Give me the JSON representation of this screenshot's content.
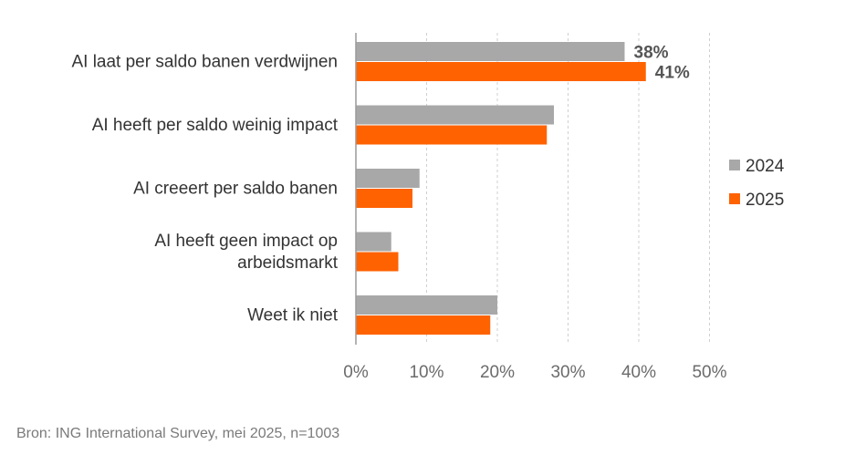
{
  "chart_data": {
    "type": "bar",
    "orientation": "horizontal",
    "categories": [
      [
        "AI laat per saldo banen verdwijnen"
      ],
      [
        "AI heeft per saldo weinig impact"
      ],
      [
        "AI creeert per saldo banen"
      ],
      [
        "AI heeft geen impact op",
        "arbeidsmarkt"
      ],
      [
        "Weet ik niet"
      ]
    ],
    "series": [
      {
        "name": "2024",
        "color": "#a8a8a8",
        "values": [
          38,
          28,
          9,
          5,
          20
        ]
      },
      {
        "name": "2025",
        "color": "#ff6200",
        "values": [
          41,
          27,
          8,
          6,
          19
        ]
      }
    ],
    "data_labels": [
      {
        "category_index": 0,
        "series_index": 0,
        "text": "38%"
      },
      {
        "category_index": 0,
        "series_index": 1,
        "text": "41%"
      }
    ],
    "x_ticks": [
      "0%",
      "10%",
      "20%",
      "30%",
      "40%",
      "50%"
    ],
    "xlim": [
      0,
      50
    ],
    "grid": "vertical dashed",
    "legend_position": "right"
  },
  "source": "Bron: ING International Survey, mei 2025, n=1003"
}
